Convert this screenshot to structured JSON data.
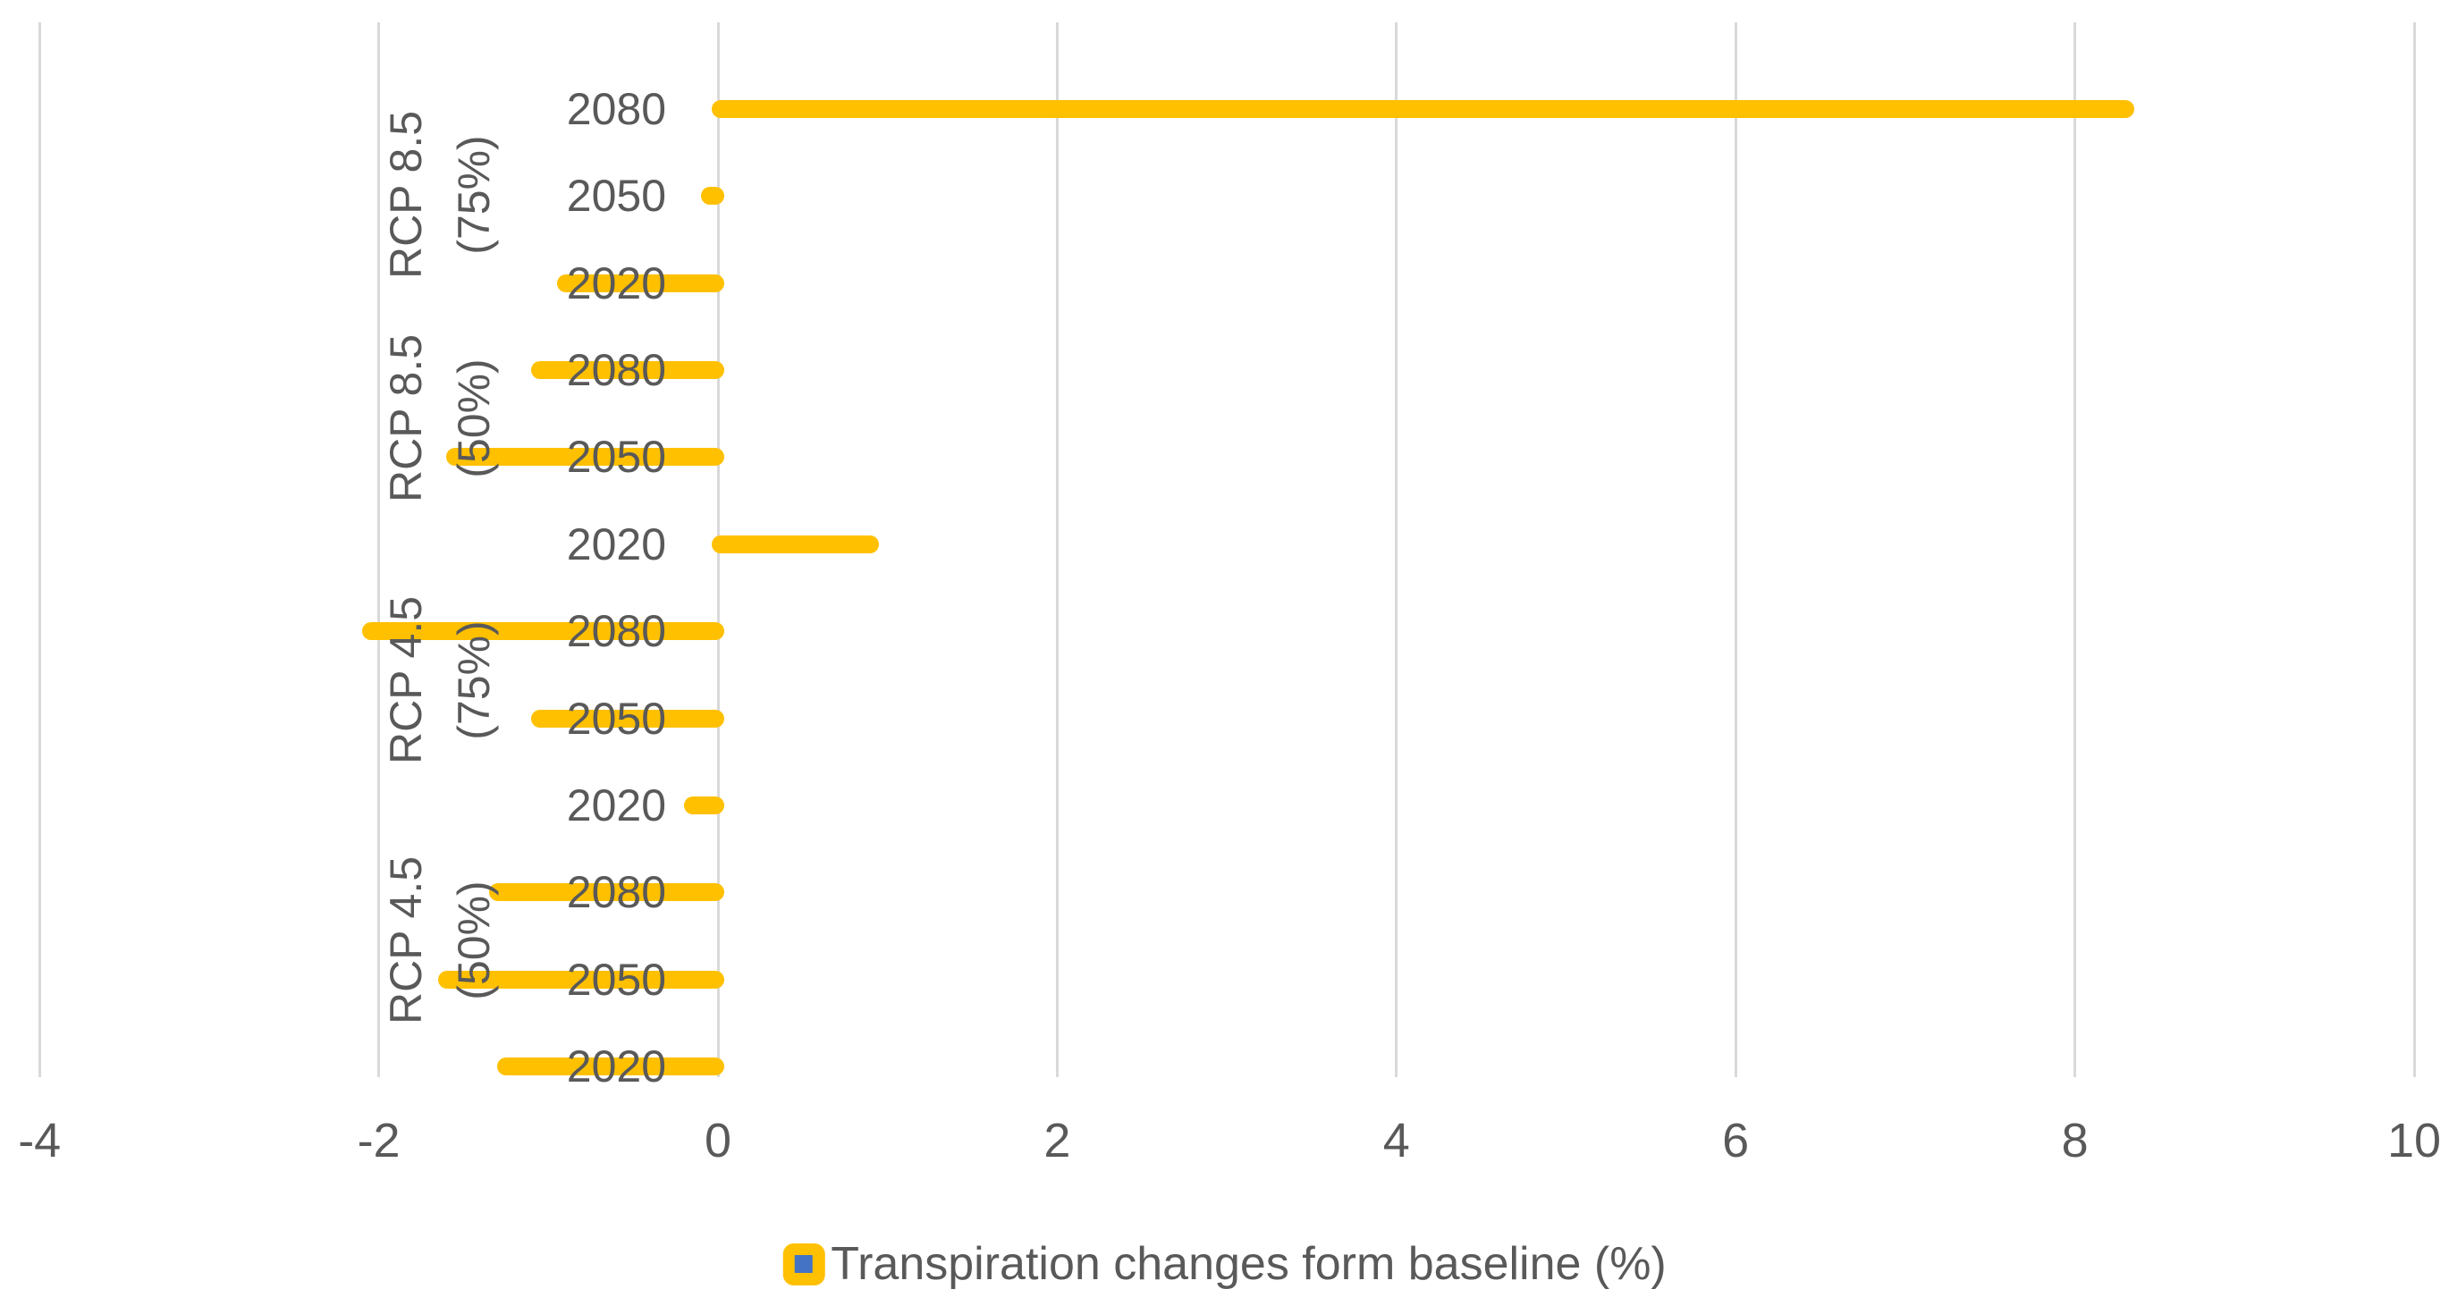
{
  "chart_data": {
    "type": "bar",
    "orientation": "horizontal",
    "legend": "Transpiration changes form baseline (%)",
    "legend_position": "bottom",
    "xlim": [
      -4,
      10
    ],
    "x_ticks": [
      "-4",
      "-2",
      "0",
      "2",
      "4",
      "6",
      "8",
      "10"
    ],
    "grid": "vertical-only",
    "groups": [
      {
        "label": "RCP 8.5 (75%)",
        "label_lines": [
          "RCP 8.5",
          "(75%)"
        ]
      },
      {
        "label": "RCP 8.5 (50%)",
        "label_lines": [
          "RCP 8.5",
          "(50%)"
        ]
      },
      {
        "label": "RCP 4.5 (75%)",
        "label_lines": [
          "RCP 4.5",
          "(75%)"
        ]
      },
      {
        "label": "RCP 4.5 (50%)",
        "label_lines": [
          "RCP 4.5",
          "(50%)"
        ]
      }
    ],
    "rows": [
      {
        "group": "RCP 8.5 (75%)",
        "year": "2080",
        "value": 8.35
      },
      {
        "group": "RCP 8.5 (75%)",
        "year": "2050",
        "value": -0.1
      },
      {
        "group": "RCP 8.5 (75%)",
        "year": "2020",
        "value": -0.95
      },
      {
        "group": "RCP 8.5 (50%)",
        "year": "2080",
        "value": -1.1
      },
      {
        "group": "RCP 8.5 (50%)",
        "year": "2050",
        "value": -1.6
      },
      {
        "group": "RCP 8.5 (50%)",
        "year": "2020",
        "value": 0.95
      },
      {
        "group": "RCP 4.5 (75%)",
        "year": "2080",
        "value": -2.1
      },
      {
        "group": "RCP 4.5 (75%)",
        "year": "2050",
        "value": -1.1
      },
      {
        "group": "RCP 4.5 (75%)",
        "year": "2020",
        "value": -0.2
      },
      {
        "group": "RCP 4.5 (50%)",
        "year": "2080",
        "value": -1.35
      },
      {
        "group": "RCP 4.5 (50%)",
        "year": "2050",
        "value": -1.65
      },
      {
        "group": "RCP 4.5 (50%)",
        "year": "2020",
        "value": -1.3
      }
    ],
    "colors": {
      "bar": "#FFC000",
      "legend_marker_outer": "#FFC000",
      "legend_marker_inner": "#4472C4",
      "text": "#595959",
      "gridline": "#D9D9D9",
      "background": "#FFFFFF"
    }
  }
}
